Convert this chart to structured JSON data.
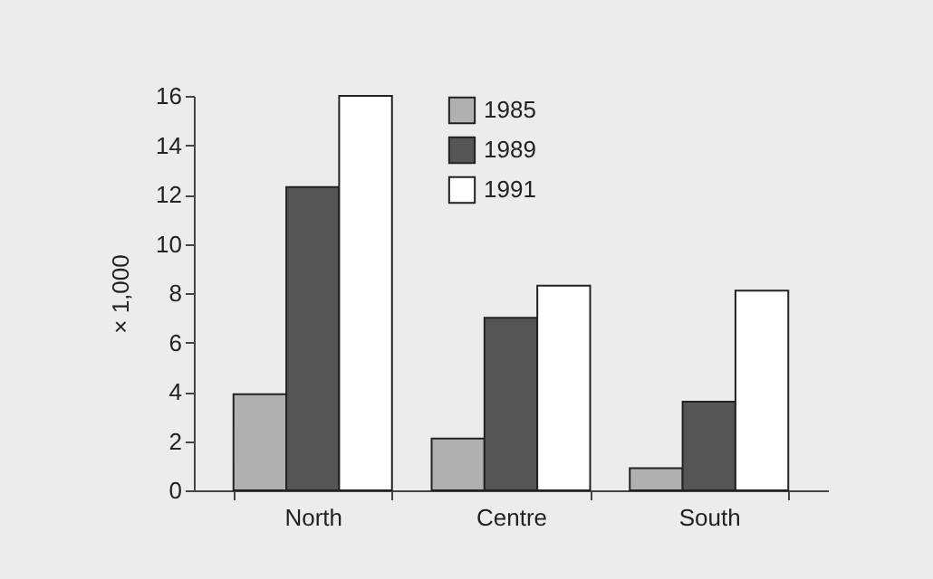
{
  "chart_data": {
    "type": "bar",
    "ylabel": "× 1,000",
    "categories": [
      "North",
      "Centre",
      "South"
    ],
    "series": [
      {
        "name": "1985",
        "color": "#b0b0b0",
        "values": [
          3.9,
          2.1,
          0.9
        ]
      },
      {
        "name": "1989",
        "color": "#555555",
        "values": [
          12.3,
          7.0,
          3.6
        ]
      },
      {
        "name": "1991",
        "color": "#ffffff",
        "values": [
          16.0,
          8.3,
          8.1
        ]
      }
    ],
    "ylim": [
      0,
      16
    ],
    "yticks": [
      0,
      2,
      4,
      6,
      8,
      10,
      12,
      14,
      16
    ],
    "grid": false,
    "legend": "top"
  }
}
